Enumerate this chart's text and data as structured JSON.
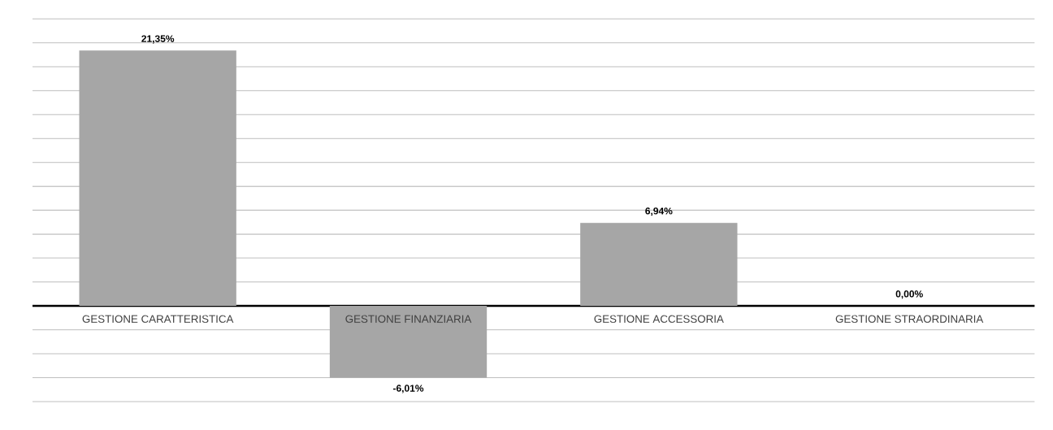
{
  "chart_data": {
    "type": "bar",
    "categories": [
      "GESTIONE CARATTERISTICA",
      "GESTIONE FINANZIARIA",
      "GESTIONE ACCESSORIA",
      "GESTIONE STRAORDINARIA"
    ],
    "values": [
      21.35,
      -6.01,
      6.94,
      0.0
    ],
    "value_labels": [
      "21,35%",
      "-6,01%",
      "6,94%",
      "0,00%"
    ],
    "color": "#a6a6a6",
    "grid": "y",
    "tick_labels": "x"
  }
}
